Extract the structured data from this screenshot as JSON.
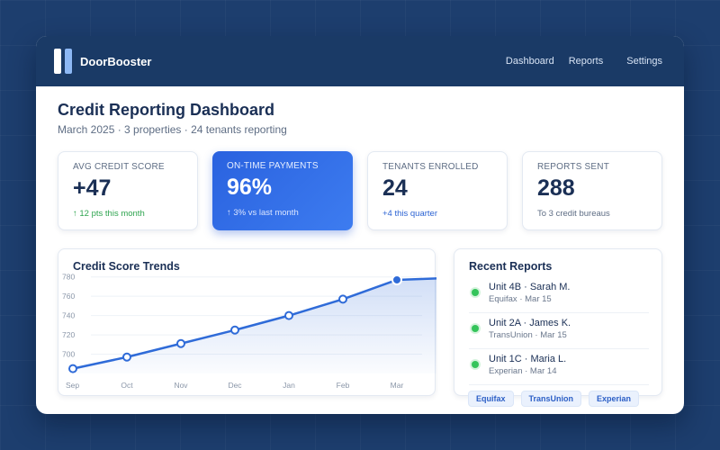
{
  "header": {
    "brand": "DoorBooster",
    "nav": [
      "Dashboard",
      "Reports",
      "Settings"
    ]
  },
  "page": {
    "title": "Credit Reporting Dashboard",
    "subtitle": "March 2025 · 3 properties · 24 tenants reporting"
  },
  "stats": [
    {
      "label": "AVG CREDIT SCORE",
      "value": "+47",
      "sub": "↑ 12 pts this month"
    },
    {
      "label": "ON-TIME PAYMENTS",
      "value": "96%",
      "sub": "↑ 3% vs last month"
    },
    {
      "label": "TENANTS ENROLLED",
      "value": "24",
      "sub": "+4 this quarter"
    },
    {
      "label": "REPORTS SENT",
      "value": "288",
      "sub": "To 3 credit bureaus"
    }
  ],
  "colors": {
    "navy": "#1a3a66",
    "accent": "#2a62df",
    "positive": "#2ea44f",
    "line": "#2f6bd8"
  },
  "chart": {
    "title": "Credit Score Trends"
  },
  "chart_data": {
    "type": "area",
    "title": "Credit Score Trends",
    "categories": [
      "Sep",
      "Oct",
      "Nov",
      "Dec",
      "Jan",
      "Feb",
      "Mar",
      ""
    ],
    "series": [
      {
        "values": [
          685,
          697,
          711,
          725,
          740,
          757,
          777,
          779
        ]
      }
    ],
    "yticks": [
      700,
      720,
      740,
      760,
      780
    ],
    "ylim": [
      680,
      790
    ],
    "highlight_index": 6,
    "grid": true,
    "xlabel": "",
    "ylabel": ""
  },
  "reports": {
    "title": "Recent Reports",
    "items": [
      {
        "name": "Unit 4B · Sarah M.",
        "meta": "Equifax · Mar 15"
      },
      {
        "name": "Unit 2A · James K.",
        "meta": "TransUnion · Mar 15"
      },
      {
        "name": "Unit 1C · Maria L.",
        "meta": "Experian · Mar 14"
      }
    ]
  },
  "bureaus": [
    "Equifax",
    "TransUnion",
    "Experian"
  ]
}
